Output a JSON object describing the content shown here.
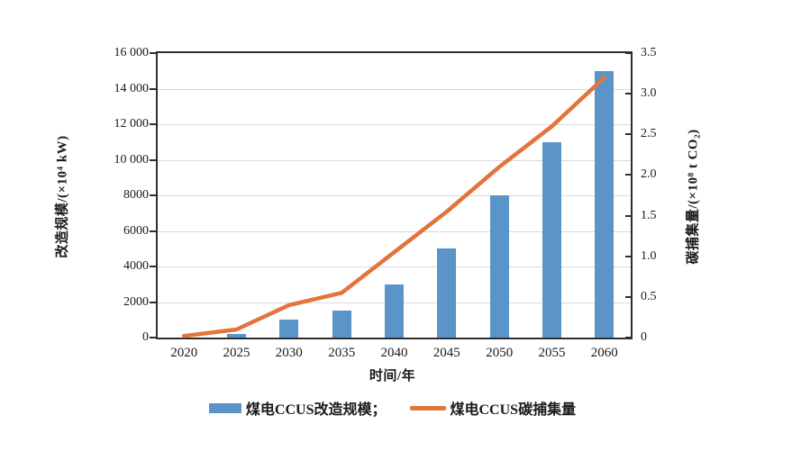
{
  "chart_data": {
    "type": "combo",
    "title": "",
    "categories": [
      "2020",
      "2025",
      "2030",
      "2035",
      "2040",
      "2045",
      "2050",
      "2055",
      "2060"
    ],
    "series": [
      {
        "name": "煤电CCUS改造规模",
        "type": "bar",
        "axis": "left",
        "color": "#5b94c9",
        "values": [
          0,
          200,
          1000,
          1500,
          3000,
          5000,
          8000,
          11000,
          15000
        ]
      },
      {
        "name": "煤电CCUS碳捕集量",
        "type": "line",
        "axis": "right",
        "color": "#e2743c",
        "values": [
          0.02,
          0.1,
          0.4,
          0.55,
          1.05,
          1.55,
          2.1,
          2.6,
          3.2
        ]
      }
    ],
    "left_axis": {
      "title": "改造规模/(×10⁴ kW)",
      "min": 0,
      "max": 16000,
      "tick_step": 2000,
      "ticks": [
        "0",
        "2000",
        "4000",
        "6000",
        "8000",
        "10 000",
        "12 000",
        "14 000",
        "16 000"
      ]
    },
    "right_axis": {
      "title": "碳捕集量/(×10⁸ t CO₂)",
      "min": 0,
      "max": 3.5,
      "tick_step": 0.5,
      "ticks": [
        "0",
        "0.5",
        "1.0",
        "1.5",
        "2.0",
        "2.5",
        "3.0",
        "3.5"
      ]
    },
    "x_axis": {
      "title": "时间/年"
    },
    "grid": "horizontal",
    "legend_position": "bottom"
  },
  "legend": {
    "items": [
      {
        "label": "煤电CCUS改造规模；"
      },
      {
        "label": "煤电CCUS碳捕集量"
      }
    ]
  },
  "colors": {
    "bar": "#5b94c9",
    "line": "#e2743c",
    "grid": "#d9d9d9",
    "axis": "#2e2e2e",
    "text": "#1a1a1a",
    "background": "#ffffff"
  }
}
